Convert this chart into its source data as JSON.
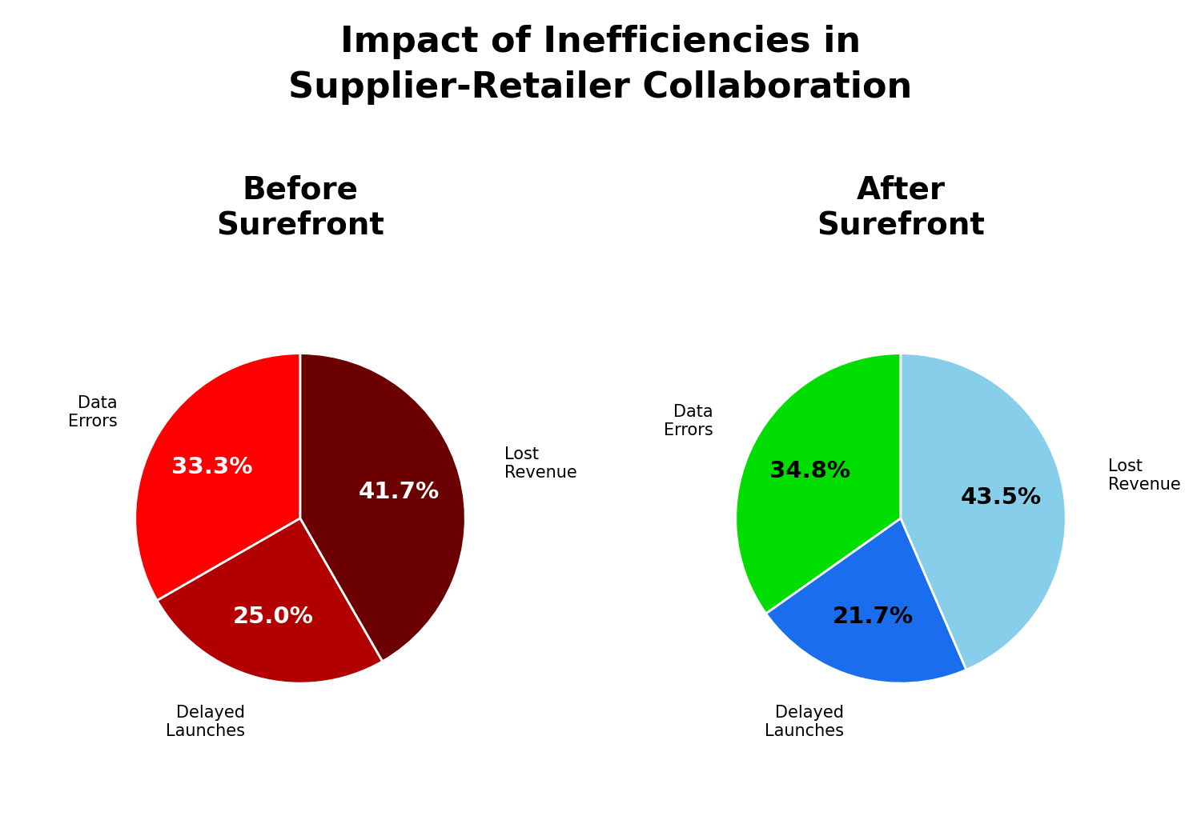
{
  "title": "Impact of Inefficiencies in\nSupplier-Retailer Collaboration",
  "title_fontsize": 32,
  "title_fontweight": "bold",
  "background_color": "#ffffff",
  "before": {
    "subtitle": "Before\nSurefront",
    "labels": [
      "Data\nErrors",
      "Delayed\nLaunches",
      "Lost\nRevenue"
    ],
    "values": [
      33.3,
      25.0,
      41.7
    ],
    "colors": [
      "#ff0000",
      "#b20000",
      "#6b0000"
    ],
    "pct_colors": [
      "white",
      "white",
      "white"
    ],
    "label_colors": [
      "black",
      "black",
      "black"
    ],
    "startangle": 90
  },
  "after": {
    "subtitle": "After\nSurefront",
    "labels": [
      "Data\nErrors",
      "Delayed\nLaunches",
      "Lost\nRevenue"
    ],
    "values": [
      34.8,
      21.7,
      43.5
    ],
    "colors": [
      "#00dd00",
      "#1a6eee",
      "#87ceeb"
    ],
    "pct_colors": [
      "black",
      "black",
      "black"
    ],
    "label_colors": [
      "black",
      "black",
      "black"
    ],
    "startangle": 90
  },
  "subtitle_fontsize": 28,
  "subtitle_fontweight": "bold",
  "label_fontsize": 15,
  "pct_fontsize": 21,
  "pct_fontweight": "bold"
}
